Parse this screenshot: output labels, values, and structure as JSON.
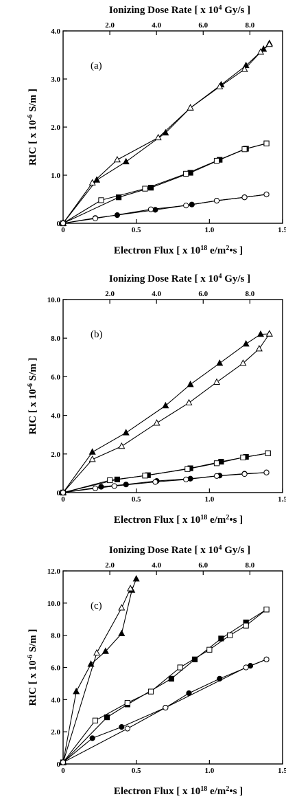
{
  "chart_data": [
    {
      "type": "line",
      "panel_label": "(a)",
      "xlabel": "Electron Flux [ x 10",
      "xlabel_exp": "18",
      "xlabel_tail": " e/m",
      "xlabel_exp2": "2",
      "xlabel_end": "•s ]",
      "ylabel": "RIC [ x 10",
      "ylabel_exp": "-6",
      "ylabel_tail": " S/m ]",
      "top_xlabel": "Ionizing Dose Rate [ x 10",
      "top_xlabel_exp": "4",
      "top_xlabel_tail": " Gy/s ]",
      "xlim": [
        0,
        1.5
      ],
      "ylim": [
        0,
        4.0
      ],
      "top_xlim": [
        0,
        9.4
      ],
      "xticks": [
        {
          "value": 0,
          "label": "0"
        },
        {
          "value": 0.5,
          "label": "0.5"
        },
        {
          "value": 1.0,
          "label": "1.0"
        },
        {
          "value": 1.5,
          "label": "1.5"
        }
      ],
      "yticks": [
        {
          "value": 0,
          "label": "0"
        },
        {
          "value": 1.0,
          "label": "1.0"
        },
        {
          "value": 2.0,
          "label": "2.0"
        },
        {
          "value": 3.0,
          "label": "3.0"
        },
        {
          "value": 4.0,
          "label": "4.0"
        }
      ],
      "top_xticks": [
        {
          "value": 2.0,
          "label": "2.0"
        },
        {
          "value": 4.0,
          "label": "4.0"
        },
        {
          "value": 6.0,
          "label": "6.0"
        },
        {
          "value": 8.0,
          "label": "8.0"
        }
      ],
      "series": [
        {
          "marker": "triangle",
          "filled": true,
          "x": [
            0,
            0.23,
            0.43,
            0.7,
            0.87,
            1.08,
            1.25,
            1.37,
            1.41
          ],
          "y": [
            0,
            0.9,
            1.28,
            1.88,
            2.4,
            2.88,
            3.28,
            3.62,
            3.74
          ]
        },
        {
          "marker": "triangle",
          "filled": false,
          "x": [
            0,
            0.2,
            0.37,
            0.65,
            0.87,
            1.07,
            1.24,
            1.35,
            1.41
          ],
          "y": [
            0,
            0.84,
            1.32,
            1.78,
            2.4,
            2.84,
            3.2,
            3.56,
            3.72
          ]
        },
        {
          "marker": "square",
          "filled": true,
          "x": [
            0,
            0.38,
            0.6,
            0.87,
            1.07,
            1.25,
            1.39
          ],
          "y": [
            0,
            0.54,
            0.74,
            1.05,
            1.32,
            1.55,
            1.66
          ]
        },
        {
          "marker": "square",
          "filled": false,
          "x": [
            0,
            0.26,
            0.56,
            0.84,
            1.05,
            1.24,
            1.39
          ],
          "y": [
            0,
            0.48,
            0.72,
            1.03,
            1.3,
            1.54,
            1.66
          ]
        },
        {
          "marker": "circle",
          "filled": true,
          "x": [
            0,
            0.22,
            0.37,
            0.63,
            0.88,
            1.05,
            1.24,
            1.39
          ],
          "y": [
            0,
            0.11,
            0.17,
            0.28,
            0.39,
            0.47,
            0.54,
            0.6
          ]
        },
        {
          "marker": "circle",
          "filled": false,
          "x": [
            0,
            0.22,
            0.6,
            0.84,
            1.05,
            1.24,
            1.39
          ],
          "y": [
            0,
            0.1,
            0.29,
            0.37,
            0.47,
            0.54,
            0.6
          ]
        }
      ]
    },
    {
      "type": "line",
      "panel_label": "(b)",
      "xlabel": "Electron Flux [ x 10",
      "xlabel_exp": "18",
      "xlabel_tail": " e/m",
      "xlabel_exp2": "2",
      "xlabel_end": "•s ]",
      "ylabel": "RIC [ x 10",
      "ylabel_exp": "-6",
      "ylabel_tail": " S/m ]",
      "top_xlabel": "Ionizing Dose Rate [ x 10",
      "top_xlabel_exp": "4",
      "top_xlabel_tail": " Gy/s ]",
      "xlim": [
        0,
        1.5
      ],
      "ylim": [
        0,
        10.0
      ],
      "top_xlim": [
        0,
        9.4
      ],
      "xticks": [
        {
          "value": 0,
          "label": "0"
        },
        {
          "value": 0.5,
          "label": "0.5"
        },
        {
          "value": 1.0,
          "label": "1.0"
        },
        {
          "value": 1.5,
          "label": "1.5"
        }
      ],
      "yticks": [
        {
          "value": 0,
          "label": "0"
        },
        {
          "value": 2.0,
          "label": "2.0"
        },
        {
          "value": 4.0,
          "label": "4.0"
        },
        {
          "value": 6.0,
          "label": "6.0"
        },
        {
          "value": 8.0,
          "label": "8.0"
        },
        {
          "value": 10.0,
          "label": "10.0"
        }
      ],
      "top_xticks": [
        {
          "value": 2.0,
          "label": "2.0"
        },
        {
          "value": 4.0,
          "label": "4.0"
        },
        {
          "value": 6.0,
          "label": "6.0"
        },
        {
          "value": 8.0,
          "label": "8.0"
        }
      ],
      "series": [
        {
          "marker": "triangle",
          "filled": true,
          "x": [
            0,
            0.2,
            0.43,
            0.7,
            0.87,
            1.07,
            1.25,
            1.35,
            1.41
          ],
          "y": [
            0,
            2.1,
            3.1,
            4.5,
            5.6,
            6.7,
            7.7,
            8.2,
            8.22
          ]
        },
        {
          "marker": "triangle",
          "filled": false,
          "x": [
            0,
            0.2,
            0.4,
            0.64,
            0.86,
            1.05,
            1.23,
            1.34,
            1.41
          ],
          "y": [
            0,
            1.72,
            2.4,
            3.6,
            4.65,
            5.72,
            6.7,
            7.45,
            8.22
          ]
        },
        {
          "marker": "square",
          "filled": true,
          "x": [
            0,
            0.37,
            0.58,
            0.87,
            1.08,
            1.25,
            1.4
          ],
          "y": [
            0,
            0.68,
            0.9,
            1.26,
            1.6,
            1.85,
            2.04
          ]
        },
        {
          "marker": "square",
          "filled": false,
          "x": [
            0,
            0.32,
            0.56,
            0.85,
            1.05,
            1.23,
            1.4
          ],
          "y": [
            0,
            0.64,
            0.88,
            1.22,
            1.52,
            1.82,
            2.04
          ]
        },
        {
          "marker": "circle",
          "filled": true,
          "x": [
            0,
            0.26,
            0.43,
            0.64,
            0.87,
            1.07,
            1.24,
            1.39
          ],
          "y": [
            0,
            0.3,
            0.42,
            0.6,
            0.72,
            0.88,
            0.98,
            1.04
          ]
        },
        {
          "marker": "circle",
          "filled": false,
          "x": [
            0,
            0.22,
            0.35,
            0.63,
            0.84,
            1.05,
            1.24,
            1.39
          ],
          "y": [
            0,
            0.22,
            0.34,
            0.55,
            0.68,
            0.86,
            0.96,
            1.04
          ]
        }
      ]
    },
    {
      "type": "line",
      "panel_label": "(c)",
      "xlabel": "Electron Flux [ x 10",
      "xlabel_exp": "18",
      "xlabel_tail": " e/m",
      "xlabel_exp2": "2",
      "xlabel_end": "•s ]",
      "ylabel": "RIC [ x 10",
      "ylabel_exp": "-6",
      "ylabel_tail": " S/m ]",
      "top_xlabel": "Ionizing Dose Rate [ x 10",
      "top_xlabel_exp": "4",
      "top_xlabel_tail": " Gy/s ]",
      "xlim": [
        0,
        1.5
      ],
      "ylim": [
        0,
        12.0
      ],
      "top_xlim": [
        0,
        9.4
      ],
      "xticks": [
        {
          "value": 0,
          "label": "0"
        },
        {
          "value": 0.5,
          "label": "0.5"
        },
        {
          "value": 1.0,
          "label": "1.0"
        },
        {
          "value": 1.5,
          "label": "1.5"
        }
      ],
      "yticks": [
        {
          "value": 0,
          "label": "0"
        },
        {
          "value": 2.0,
          "label": "2.0"
        },
        {
          "value": 4.0,
          "label": "4.0"
        },
        {
          "value": 6.0,
          "label": "6.0"
        },
        {
          "value": 8.0,
          "label": "8.0"
        },
        {
          "value": 10.0,
          "label": "10.0"
        },
        {
          "value": 12.0,
          "label": "12.0"
        }
      ],
      "top_xticks": [
        {
          "value": 2.0,
          "label": "2.0"
        },
        {
          "value": 4.0,
          "label": "4.0"
        },
        {
          "value": 6.0,
          "label": "6.0"
        },
        {
          "value": 8.0,
          "label": "8.0"
        }
      ],
      "series": [
        {
          "marker": "triangle",
          "filled": true,
          "x": [
            0,
            0.09,
            0.19,
            0.29,
            0.4,
            0.47,
            0.5
          ],
          "y": [
            0.1,
            4.5,
            6.2,
            7.0,
            8.1,
            10.8,
            11.5
          ]
        },
        {
          "marker": "triangle",
          "filled": false,
          "x": [
            0,
            0.23,
            0.4,
            0.46
          ],
          "y": [
            0.1,
            6.9,
            9.7,
            10.9
          ]
        },
        {
          "marker": "square",
          "filled": true,
          "x": [
            0,
            0.3,
            0.44,
            0.74,
            0.9,
            1.08,
            1.25,
            1.39
          ],
          "y": [
            0.1,
            2.9,
            3.7,
            5.3,
            6.5,
            7.8,
            8.8,
            9.6
          ]
        },
        {
          "marker": "square",
          "filled": false,
          "x": [
            0,
            0.22,
            0.44,
            0.6,
            0.8,
            1.0,
            1.14,
            1.25,
            1.39
          ],
          "y": [
            0.1,
            2.7,
            3.8,
            4.5,
            6.0,
            7.1,
            8.0,
            8.6,
            9.6
          ]
        },
        {
          "marker": "circle",
          "filled": true,
          "x": [
            0,
            0.2,
            0.4,
            0.7,
            0.86,
            1.07,
            1.28,
            1.39
          ],
          "y": [
            0.1,
            1.6,
            2.3,
            3.5,
            4.4,
            5.3,
            6.1,
            6.5
          ]
        },
        {
          "marker": "circle",
          "filled": false,
          "x": [
            0,
            0.44,
            0.7,
            1.25,
            1.39
          ],
          "y": [
            0.1,
            2.2,
            3.5,
            6.0,
            6.5
          ]
        }
      ]
    }
  ]
}
